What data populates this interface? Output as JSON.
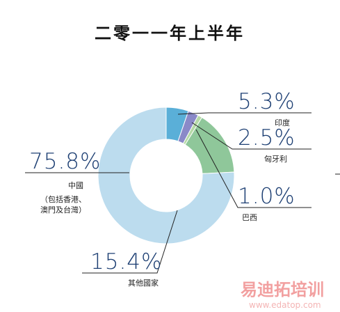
{
  "chart_data": {
    "type": "pie",
    "title": "二零一一年上半年",
    "slices": [
      {
        "name": "印度",
        "value": 5.3,
        "label": "5.3%",
        "color": "#5aafd8"
      },
      {
        "name": "匈牙利",
        "value": 2.5,
        "label": "2.5%",
        "color": "#8a89c8"
      },
      {
        "name": "巴西",
        "value": 1.0,
        "label": "1.0%",
        "color": "#b5d9a6"
      },
      {
        "name": "其他國家",
        "value": 15.4,
        "label": "15.4%",
        "color": "#8fc79a"
      },
      {
        "name": "中國",
        "name_note_1": "（包括香港、",
        "name_note_2": "澳門及台灣）",
        "value": 75.8,
        "label": "75.8%",
        "color": "#bcdcee"
      }
    ]
  },
  "watermark": {
    "text": "易迪拓培训",
    "url": "www.edatop.com",
    "color": "#f2a0a0"
  }
}
